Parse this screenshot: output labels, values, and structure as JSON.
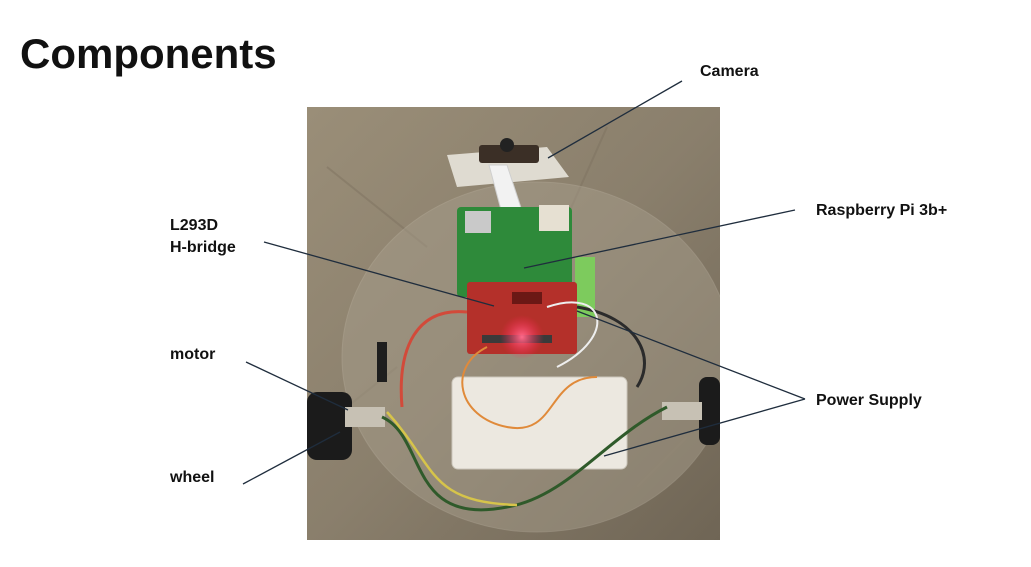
{
  "slide": {
    "title": "Components"
  },
  "labels": {
    "camera": "Camera",
    "raspberry_pi": "Raspberry Pi 3b+",
    "h_bridge_line1": "L293D",
    "h_bridge_line2": "H-bridge",
    "motor": "motor",
    "wheel": "wheel",
    "power_supply": "Power Supply"
  },
  "colors": {
    "leader_line": "#1f2d3d",
    "floor": "#8a7f6c",
    "board_pcb": "#b4302a",
    "pi_board": "#2e8a3a"
  }
}
